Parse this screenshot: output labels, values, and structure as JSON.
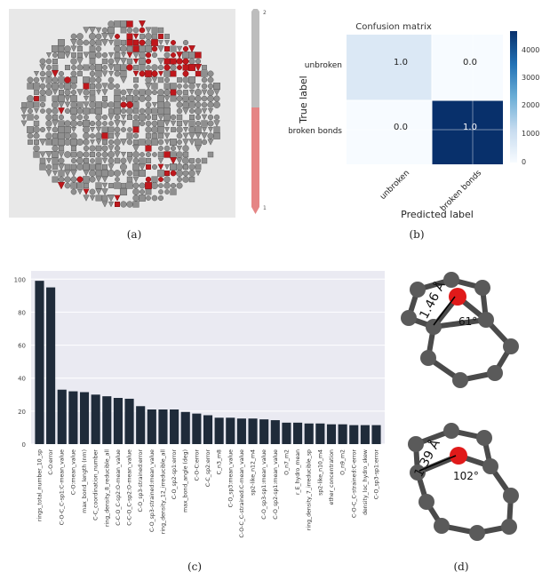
{
  "captions": {
    "a": "(a)",
    "b": "(b)",
    "c": "(c)",
    "d": "(d)"
  },
  "panel_a": {
    "colorbar_top_label": "2",
    "colorbar_bottom_label": "1"
  },
  "panel_b": {
    "title": "Confusion matrix",
    "xlabel": "Predicted label",
    "ylabel": "True label",
    "col_labels": [
      "unbroken",
      "broken bonds"
    ],
    "row_labels": [
      "unbroken",
      "broken bonds"
    ],
    "cells": [
      [
        "1.0",
        "0.0"
      ],
      [
        "0.0",
        "1.0"
      ]
    ],
    "colorbar_ticks": [
      "4000",
      "3000",
      "2000",
      "1000",
      "0"
    ]
  },
  "panel_d": {
    "top_bond_length": "1.46 Å",
    "top_angle": "61°",
    "bottom_bond_length": "1.39 Å",
    "bottom_angle": "102°"
  },
  "chart_data": {
    "type": "bar",
    "title": "",
    "xlabel": "",
    "ylabel": "",
    "ylim": [
      0,
      105
    ],
    "yticks": [
      0,
      20,
      40,
      60,
      80,
      100
    ],
    "categories": [
      "rings_total_number_10_sp",
      "C-O:error",
      "C-O-C_C-sp1:C-mean_value",
      "C-O:mean_value",
      "max_bond_length (nm)",
      "C-C_coordination_number",
      "ring_density_8_reducible_all",
      "C-C-O_C-sp2:O-mean_value",
      "C-C-O_C-sp2:O-mean_value",
      "C-O_sp3-strained:error",
      "C-O_sp3-strained:mean_value",
      "ring_density_12_irreducible_all",
      "C-O_sp2-sp1:error",
      "max_bond_angle (deg)",
      "C-O-C:error",
      "C-C_sp2:error",
      "C_n3_m8",
      "C-O_sp3:mean_value",
      "C-O-C_C-strained:C-mean_value",
      "sp2-like_n12_m4",
      "C-O_sp3-sp1:mean_value",
      "C-O_sp2-sp1:mean_value",
      "O_n7_m2",
      "r_E_hydro_mean",
      "ring_density_7_irreducible_sp",
      "sp2-like_n10_m4",
      "ether_concentration",
      "O_n9_m2",
      "C-O-C_C-strained:C-error",
      "density_loc_hydro_skew",
      "C-O_sp3-sp1:error"
    ],
    "values": [
      99,
      95,
      33,
      32,
      31.5,
      30,
      29,
      28,
      27.5,
      23,
      21,
      21,
      21,
      19.5,
      18.5,
      17.5,
      16,
      16,
      15.5,
      15.5,
      15,
      14.5,
      13,
      13,
      12.5,
      12.5,
      12,
      12,
      11.5,
      11.5,
      11.5
    ]
  }
}
